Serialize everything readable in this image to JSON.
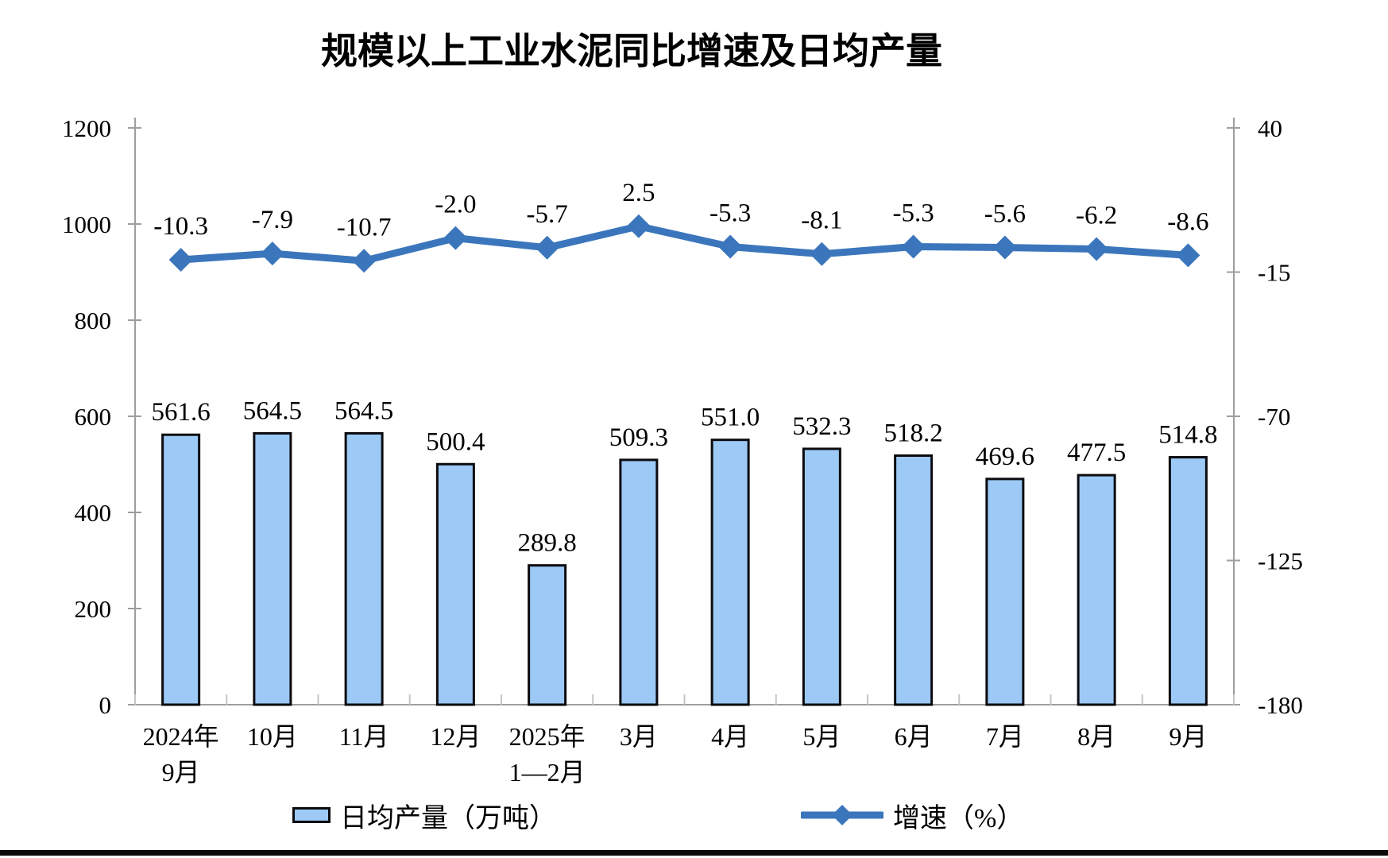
{
  "page": {
    "title": "规模以上工业水泥同比增速及日均产量"
  },
  "chart_data": {
    "type": "bar+line",
    "title": "规模以上工业水泥同比增速及日均产量",
    "categories": [
      "2024年\n9月",
      "10月",
      "11月",
      "12月",
      "2025年\n1—2月",
      "3月",
      "4月",
      "5月",
      "6月",
      "7月",
      "8月",
      "9月"
    ],
    "series": [
      {
        "name": "日均产量（万吨）",
        "type": "bar",
        "axis": "left",
        "values": [
          561.6,
          564.5,
          564.5,
          500.4,
          289.8,
          509.3,
          551.0,
          532.3,
          518.2,
          469.6,
          477.5,
          514.8
        ]
      },
      {
        "name": "增速（%）",
        "type": "line",
        "axis": "right",
        "marker": "diamond",
        "values": [
          -10.3,
          -7.9,
          -10.7,
          -2.0,
          -5.7,
          2.5,
          -5.3,
          -8.1,
          -5.3,
          -5.6,
          -6.2,
          -8.6
        ]
      }
    ],
    "left_axis": {
      "min": 0,
      "max": 1200,
      "step": 200,
      "ticks": [
        0,
        200,
        400,
        600,
        800,
        1000,
        1200
      ]
    },
    "right_axis": {
      "min": -180,
      "max": 40,
      "step": 55,
      "ticks": [
        -180,
        -125,
        -70,
        -15,
        40
      ]
    },
    "legend": {
      "bar_label": "日均产量（万吨）",
      "line_label": "增速（%）"
    },
    "grid": "off",
    "legend_position": "bottom",
    "colors": {
      "bar_fill": "#9CC9F5",
      "bar_stroke": "#0b0b10",
      "line": "#3B76BC",
      "axis": "#9e9e9e",
      "boundary_tick": "#c6c6c6",
      "text": "#000000"
    }
  }
}
